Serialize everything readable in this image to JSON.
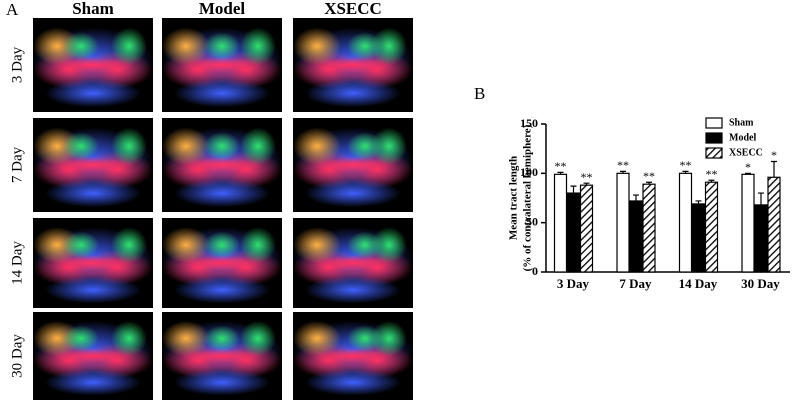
{
  "panel_a": {
    "label": "A",
    "columns": [
      "Sham",
      "Model",
      "XSECC"
    ],
    "rows": [
      "3 Day",
      "7 Day",
      "14 Day",
      "30 Day"
    ]
  },
  "chart_data": {
    "type": "bar",
    "label": "B",
    "y_label": [
      "Mean tract length",
      "(% of contralateral hemiphere)"
    ],
    "categories": [
      "3 Day",
      "7 Day",
      "14 Day",
      "30 Day"
    ],
    "series": [
      {
        "name": "Sham",
        "color": "#ffffff",
        "values": [
          99,
          100,
          100,
          99
        ],
        "errors": [
          2,
          2,
          2,
          1
        ],
        "labels": [
          "**",
          "**",
          "**",
          "*"
        ]
      },
      {
        "name": "Model",
        "color": "#000000",
        "values": [
          80,
          72,
          69,
          68
        ],
        "errors": [
          7,
          6,
          3,
          12
        ]
      },
      {
        "name": "XSECC",
        "color": "#ffffff",
        "hatch": true,
        "values": [
          88,
          89,
          91,
          96
        ],
        "errors": [
          2,
          2,
          2,
          16
        ],
        "labels": [
          "**",
          "**",
          "**",
          "*"
        ]
      }
    ],
    "ylim": [
      0,
      150
    ],
    "yticks": [
      0,
      50,
      100,
      150
    ],
    "legend": "top-right"
  }
}
